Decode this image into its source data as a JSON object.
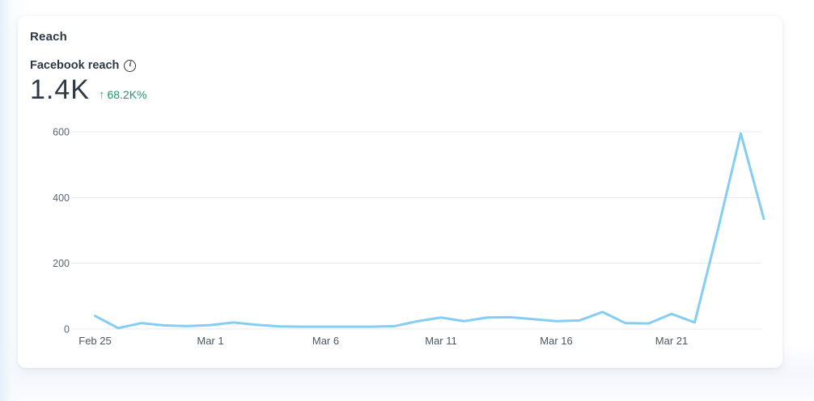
{
  "card": {
    "title": "Reach",
    "metric_label": "Facebook reach",
    "info_icon_glyph": "i",
    "metric_value": "1.4K",
    "trend_arrow": "↑",
    "metric_change": "68.2K%",
    "trend_color": "#1d9a6c"
  },
  "chart_data": {
    "type": "line",
    "title": "Facebook reach",
    "xlabel": "",
    "ylabel": "",
    "x": [
      "Feb 25",
      "Feb 26",
      "Feb 27",
      "Feb 28",
      "Feb 29",
      "Mar 1",
      "Mar 2",
      "Mar 3",
      "Mar 4",
      "Mar 5",
      "Mar 6",
      "Mar 7",
      "Mar 8",
      "Mar 9",
      "Mar 10",
      "Mar 11",
      "Mar 12",
      "Mar 13",
      "Mar 14",
      "Mar 15",
      "Mar 16",
      "Mar 17",
      "Mar 18",
      "Mar 19",
      "Mar 20",
      "Mar 21",
      "Mar 22",
      "Mar 23",
      "Mar 24",
      "Mar 25"
    ],
    "series": [
      {
        "name": "Facebook reach",
        "values": [
          40,
          3,
          18,
          11,
          9,
          12,
          20,
          13,
          8,
          7,
          7,
          7,
          7,
          9,
          24,
          35,
          24,
          35,
          36,
          30,
          24,
          26,
          52,
          18,
          17,
          46,
          20,
          300,
          595,
          335
        ]
      }
    ],
    "x_tick_labels": [
      "Feb 25",
      "Mar 1",
      "Mar 6",
      "Mar 11",
      "Mar 16",
      "Mar 21"
    ],
    "x_tick_indices": [
      0,
      5,
      10,
      15,
      20,
      25
    ],
    "y_ticks": [
      0,
      200,
      400,
      600
    ],
    "ylim": [
      0,
      620
    ],
    "grid": true,
    "legend": "none",
    "line_color": "#85cdf2"
  }
}
